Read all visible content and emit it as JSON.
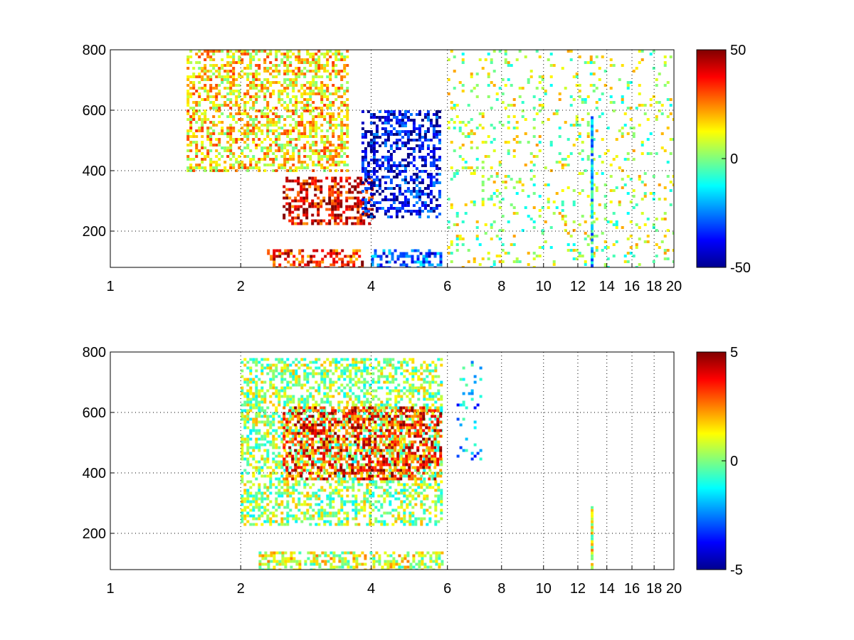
{
  "chart_data": [
    {
      "type": "heatmap",
      "title": "",
      "xlabel": "",
      "ylabel": "",
      "xlim": [
        1,
        20
      ],
      "ylim": [
        80,
        800
      ],
      "x_scale": "log",
      "grid": "dotted",
      "colormap": "jet",
      "colorbar": {
        "min": -50,
        "max": 50,
        "ticks": [
          50,
          0,
          -50
        ],
        "placement": "right"
      },
      "x_ticks": [
        1,
        2,
        4,
        6,
        8,
        10,
        12,
        14,
        16,
        18,
        20
      ],
      "y_ticks": [
        200,
        400,
        600,
        800
      ],
      "features": [
        {
          "description": "positive band",
          "x": [
            2.5,
            4.0
          ],
          "y": [
            220,
            380
          ],
          "value": 40
        },
        {
          "description": "positive low band",
          "x": [
            2.3,
            3.8
          ],
          "y": [
            80,
            140
          ],
          "value": 35
        },
        {
          "description": "negative band",
          "x": [
            3.8,
            5.8
          ],
          "y": [
            250,
            600
          ],
          "value": -40
        },
        {
          "description": "negative low band",
          "x": [
            4.0,
            5.8
          ],
          "y": [
            80,
            140
          ],
          "value": -30
        },
        {
          "description": "mixed positive region",
          "x": [
            1.5,
            3.5
          ],
          "y": [
            400,
            800
          ],
          "value": 15
        },
        {
          "description": "sparse near-zero pixels",
          "x": [
            6,
            20
          ],
          "y": [
            80,
            800
          ],
          "value": 5
        },
        {
          "description": "vertical streak",
          "x": [
            12.85,
            12.95
          ],
          "y": [
            80,
            580
          ],
          "value": -15
        }
      ]
    },
    {
      "type": "heatmap",
      "title": "",
      "xlabel": "",
      "ylabel": "",
      "xlim": [
        1,
        20
      ],
      "ylim": [
        80,
        800
      ],
      "x_scale": "log",
      "grid": "dotted",
      "colormap": "jet",
      "colorbar": {
        "min": -5,
        "max": 5,
        "ticks": [
          5,
          0,
          -5
        ],
        "placement": "right"
      },
      "x_ticks": [
        1,
        2,
        4,
        6,
        8,
        10,
        12,
        14,
        16,
        18,
        20
      ],
      "y_ticks": [
        200,
        400,
        600,
        800
      ],
      "features": [
        {
          "description": "near-zero cloud",
          "x": [
            2.0,
            5.8
          ],
          "y": [
            230,
            780
          ],
          "value": 0.3
        },
        {
          "description": "near-zero low band",
          "x": [
            2.2,
            5.8
          ],
          "y": [
            80,
            140
          ],
          "value": 0.8
        },
        {
          "description": "positive ridge",
          "x": [
            2.5,
            5.8
          ],
          "y": [
            380,
            620
          ],
          "value": 3.5
        },
        {
          "description": "scattered column",
          "x": [
            6.3,
            7.2
          ],
          "y": [
            450,
            780
          ],
          "value": -2
        },
        {
          "description": "vertical streak",
          "x": [
            12.85,
            12.95
          ],
          "y": [
            80,
            290
          ],
          "value": 1
        }
      ]
    }
  ]
}
